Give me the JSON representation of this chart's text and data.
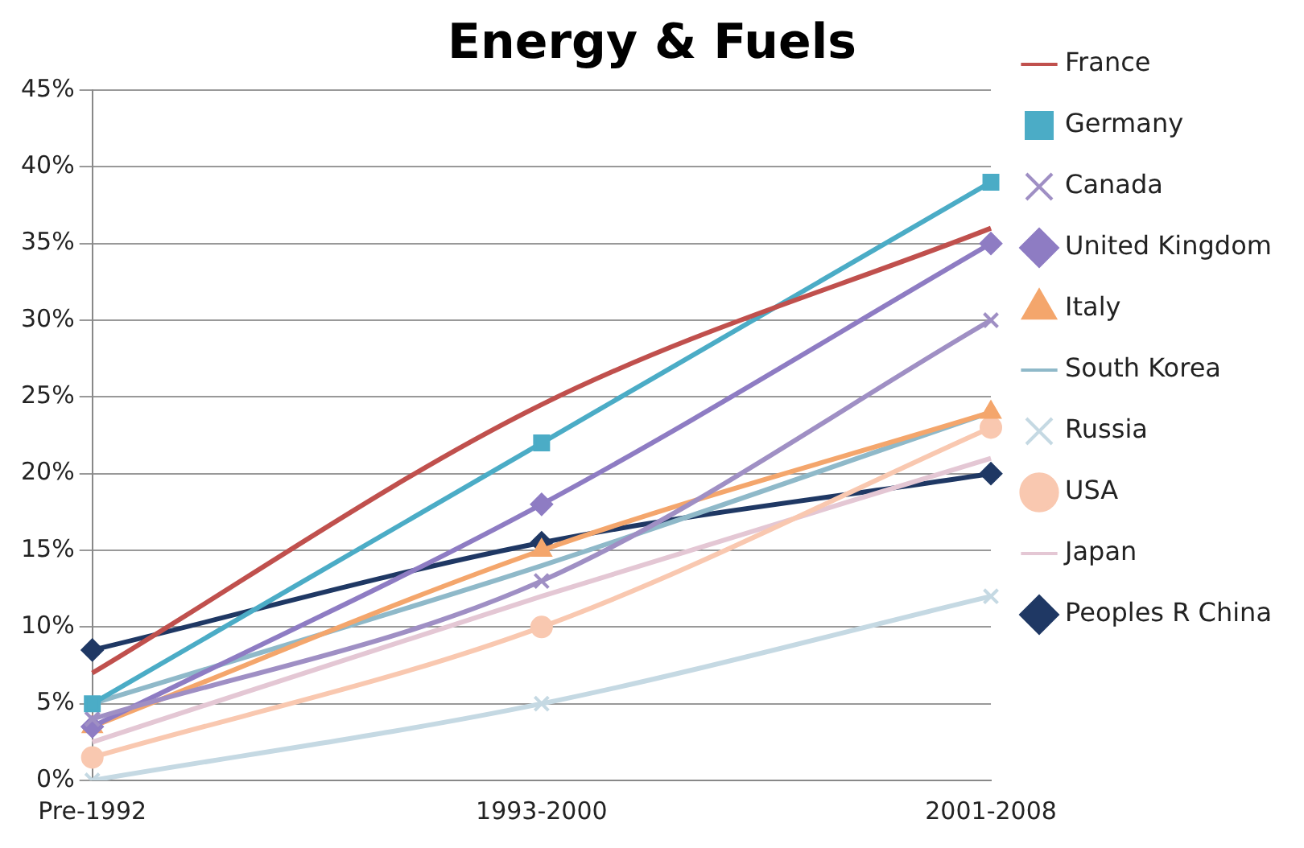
{
  "chart_data": {
    "type": "line",
    "title": "Energy & Fuels",
    "categories": [
      "Pre-1992",
      "1993-2000",
      "2001-2008"
    ],
    "ylim": [
      0,
      45
    ],
    "yticks": [
      {
        "value": 0,
        "label": "0%"
      },
      {
        "value": 5,
        "label": "5%"
      },
      {
        "value": 10,
        "label": "10%"
      },
      {
        "value": 15,
        "label": "15%"
      },
      {
        "value": 20,
        "label": "20%"
      },
      {
        "value": 25,
        "label": "25%"
      },
      {
        "value": 30,
        "label": "30%"
      },
      {
        "value": 35,
        "label": "35%"
      },
      {
        "value": 40,
        "label": "40%"
      },
      {
        "value": 45,
        "label": "45%"
      }
    ],
    "grid": "y",
    "legend": "right",
    "series": [
      {
        "name": "France",
        "color": "#c0504d",
        "marker": "none",
        "values": [
          7,
          24.5,
          36
        ]
      },
      {
        "name": "Germany",
        "color": "#4bacc6",
        "marker": "square",
        "values": [
          5,
          22,
          39
        ]
      },
      {
        "name": "Canada",
        "color": "#9f8fc4",
        "marker": "cross",
        "values": [
          4,
          13,
          30
        ]
      },
      {
        "name": "United Kingdom",
        "color": "#8e7cc3",
        "marker": "diamond",
        "values": [
          3.5,
          18,
          35
        ]
      },
      {
        "name": "Italy",
        "color": "#f4a66c",
        "marker": "triangle",
        "values": [
          3.5,
          15,
          24
        ]
      },
      {
        "name": "South Korea",
        "color": "#8fb9c9",
        "marker": "none",
        "values": [
          5,
          14,
          24
        ]
      },
      {
        "name": "Russia",
        "color": "#c5d9e3",
        "marker": "cross",
        "values": [
          0,
          5,
          12
        ]
      },
      {
        "name": "USA",
        "color": "#f9c8b0",
        "marker": "circle",
        "values": [
          1.5,
          10,
          23
        ]
      },
      {
        "name": "Japan",
        "color": "#e4c7d4",
        "marker": "none",
        "values": [
          2.5,
          12,
          21
        ]
      },
      {
        "name": "Peoples R China",
        "color": "#1f3864",
        "marker": "diamond",
        "values": [
          8.5,
          15.5,
          20
        ]
      }
    ]
  }
}
